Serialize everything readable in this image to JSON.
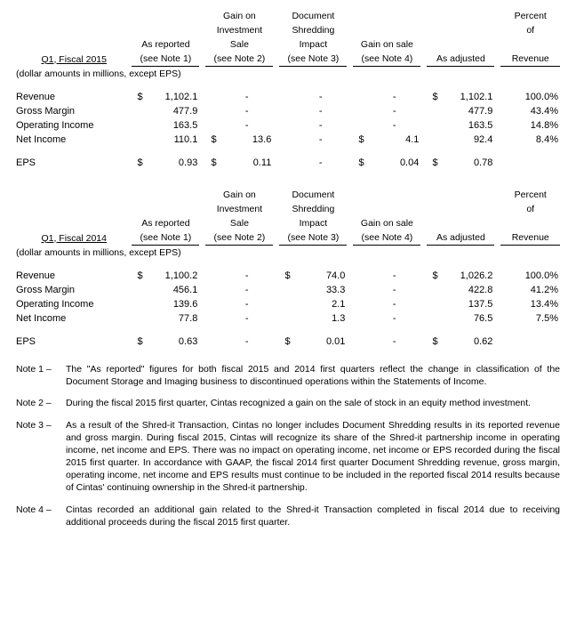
{
  "common": {
    "units_note": "(dollar amounts in millions, except EPS)",
    "col_headers": {
      "as_reported_top": "As reported",
      "as_reported_sub": "(see Note 1)",
      "gain_inv_a": "Gain on",
      "gain_inv_b": "Investment",
      "gain_inv_c": "Sale",
      "gain_inv_sub": "(see Note 2)",
      "doc_a": "Document",
      "doc_b": "Shredding",
      "doc_c": "Impact",
      "doc_sub": "(see Note 3)",
      "gain_sale_top": "Gain on sale",
      "gain_sale_sub": "(see Note 4)",
      "as_adj": "As adjusted",
      "pct_a": "Percent",
      "pct_b": "of",
      "pct_c": "Revenue"
    },
    "metrics": {
      "rev": "Revenue",
      "gm": "Gross Margin",
      "oi": "Operating Income",
      "ni": "Net Income",
      "eps": "EPS"
    },
    "currency": "$"
  },
  "t2015": {
    "title": "Q1, Fiscal 2015",
    "rows": {
      "rev": {
        "rep": "1,102.1",
        "inv": "-",
        "doc": "-",
        "gs": "-",
        "adj": "1,102.1",
        "pct": "100.0%",
        "rep_cur": "$",
        "inv_cur": "",
        "doc_cur": "",
        "gs_cur": "",
        "adj_cur": "$"
      },
      "gm": {
        "rep": "477.9",
        "inv": "-",
        "doc": "-",
        "gs": "-",
        "adj": "477.9",
        "pct": "43.4%",
        "rep_cur": "",
        "inv_cur": "",
        "doc_cur": "",
        "gs_cur": "",
        "adj_cur": ""
      },
      "oi": {
        "rep": "163.5",
        "inv": "-",
        "doc": "-",
        "gs": "-",
        "adj": "163.5",
        "pct": "14.8%",
        "rep_cur": "",
        "inv_cur": "",
        "doc_cur": "",
        "gs_cur": "",
        "adj_cur": ""
      },
      "ni": {
        "rep": "110.1",
        "inv": "13.6",
        "doc": "-",
        "gs": "4.1",
        "adj": "92.4",
        "pct": "8.4%",
        "rep_cur": "",
        "inv_cur": "$",
        "doc_cur": "",
        "gs_cur": "$",
        "adj_cur": ""
      },
      "eps": {
        "rep": "0.93",
        "inv": "0.11",
        "doc": "-",
        "gs": "0.04",
        "adj": "0.78",
        "pct": "",
        "rep_cur": "$",
        "inv_cur": "$",
        "doc_cur": "",
        "gs_cur": "$",
        "adj_cur": "$"
      }
    }
  },
  "t2014": {
    "title": "Q1, Fiscal 2014",
    "rows": {
      "rev": {
        "rep": "1,100.2",
        "inv": "-",
        "doc": "74.0",
        "gs": "-",
        "adj": "1,026.2",
        "pct": "100.0%",
        "rep_cur": "$",
        "inv_cur": "",
        "doc_cur": "$",
        "gs_cur": "",
        "adj_cur": "$"
      },
      "gm": {
        "rep": "456.1",
        "inv": "-",
        "doc": "33.3",
        "gs": "-",
        "adj": "422.8",
        "pct": "41.2%",
        "rep_cur": "",
        "inv_cur": "",
        "doc_cur": "",
        "gs_cur": "",
        "adj_cur": ""
      },
      "oi": {
        "rep": "139.6",
        "inv": "-",
        "doc": "2.1",
        "gs": "-",
        "adj": "137.5",
        "pct": "13.4%",
        "rep_cur": "",
        "inv_cur": "",
        "doc_cur": "",
        "gs_cur": "",
        "adj_cur": ""
      },
      "ni": {
        "rep": "77.8",
        "inv": "-",
        "doc": "1.3",
        "gs": "-",
        "adj": "76.5",
        "pct": "7.5%",
        "rep_cur": "",
        "inv_cur": "",
        "doc_cur": "",
        "gs_cur": "",
        "adj_cur": ""
      },
      "eps": {
        "rep": "0.63",
        "inv": "-",
        "doc": "0.01",
        "gs": "-",
        "adj": "0.62",
        "pct": "",
        "rep_cur": "$",
        "inv_cur": "",
        "doc_cur": "$",
        "gs_cur": "",
        "adj_cur": "$"
      }
    }
  },
  "notes": {
    "n1": {
      "label": "Note 1 –",
      "text": "The \"As reported\" figures for both fiscal 2015 and 2014 first quarters reflect the change in classification of the Document Storage and Imaging business to discontinued operations within the Statements of Income."
    },
    "n2": {
      "label": "Note 2 –",
      "text": "During the fiscal 2015 first quarter, Cintas recognized a gain on the sale of stock in an equity method investment."
    },
    "n3": {
      "label": "Note 3 –",
      "text": "As a result of the Shred-it Transaction, Cintas no longer includes Document Shredding results in its reported revenue and gross margin.  During fiscal 2015, Cintas will recognize its share of the Shred-it partnership income in operating income, net income and EPS.  There was no impact on operating income, net income or EPS recorded during the fiscal 2015 first quarter.  In accordance with GAAP, the fiscal 2014 first quarter Document Shredding revenue, gross margin, operating income, net income and EPS results must continue to be included in the reported fiscal 2014 results because of Cintas' continuing ownership in the Shred-it partnership."
    },
    "n4": {
      "label": "Note 4 –",
      "text": "Cintas recorded an additional gain related to the Shred-it Transaction completed in fiscal 2014 due to receiving additional proceeds during the fiscal 2015 first quarter."
    }
  }
}
